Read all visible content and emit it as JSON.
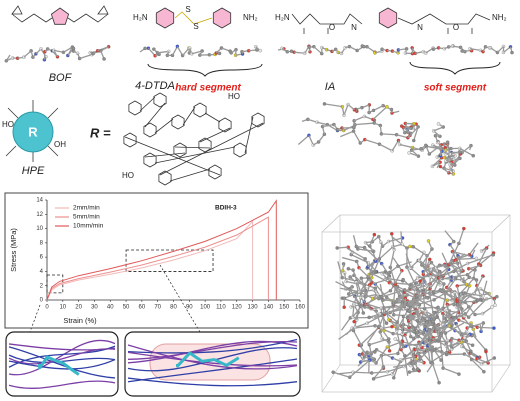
{
  "labels": {
    "bof": "BOF",
    "dtda": "4-DTDA",
    "hard": "hard segment",
    "ia": "IA",
    "soft": "soft segment",
    "r": "R",
    "r_eq": "R =",
    "hpe": "HPE",
    "h2n": "H₂N",
    "nh2": "NH₂",
    "n": "N",
    "o": "O",
    "s": "S",
    "ho": "HO",
    "oh": "OH"
  },
  "chart_data": {
    "type": "line",
    "x_label": "Strain (%)",
    "y_label": "Stress (MPa)",
    "annotation": "BDIH-3",
    "xlim": [
      0,
      160
    ],
    "xticks": [
      0,
      10,
      20,
      30,
      40,
      50,
      60,
      70,
      80,
      90,
      100,
      110,
      120,
      130,
      140,
      150,
      160
    ],
    "ylim": [
      0,
      14
    ],
    "yticks": [
      0,
      2,
      4,
      6,
      8,
      10,
      12,
      14
    ],
    "legend": "upper left",
    "series": [
      {
        "name": "2mm/min",
        "color": "#f2b9b9",
        "x": [
          0,
          3,
          8,
          20,
          40,
          60,
          80,
          100,
          120,
          130,
          130
        ],
        "values": [
          0,
          1.4,
          2.1,
          2.8,
          3.6,
          4.5,
          5.6,
          6.9,
          8.6,
          11,
          0
        ]
      },
      {
        "name": "5mm/min",
        "color": "#ee8f8f",
        "x": [
          0,
          3,
          8,
          20,
          40,
          60,
          80,
          100,
          120,
          140,
          140
        ],
        "values": [
          0,
          1.6,
          2.3,
          3.0,
          3.9,
          4.9,
          6.1,
          7.4,
          9.1,
          11.6,
          0
        ]
      },
      {
        "name": "10mm/min",
        "color": "#e05a5a",
        "x": [
          0,
          3,
          8,
          20,
          40,
          60,
          80,
          100,
          120,
          140,
          145,
          145
        ],
        "values": [
          0,
          1.8,
          2.6,
          3.4,
          4.4,
          5.5,
          6.8,
          8.2,
          10,
          12.3,
          13.9,
          0
        ]
      }
    ]
  }
}
